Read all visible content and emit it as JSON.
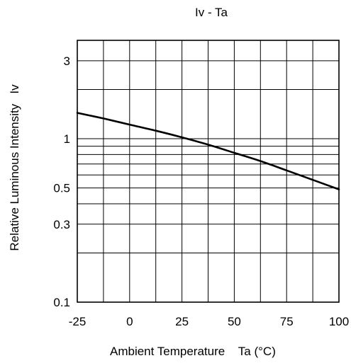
{
  "chart_data": {
    "type": "line",
    "title": "Iv - Ta",
    "xlabel": "Ambient Temperature    Ta (°C)",
    "ylabel": "Relative Luminous Intensity   Iv",
    "x_scale": "linear",
    "y_scale": "log",
    "xlim": [
      -25,
      100
    ],
    "ylim": [
      0.1,
      4
    ],
    "x_ticks": [
      -25,
      0,
      25,
      50,
      75,
      100
    ],
    "x_tick_labels": [
      "-25",
      "0",
      "25",
      "50",
      "75",
      "100"
    ],
    "x_minor_grid": [
      -12.5,
      12.5,
      37.5,
      62.5,
      87.5
    ],
    "y_ticks": [
      0.1,
      0.3,
      0.5,
      1,
      3
    ],
    "y_tick_labels": [
      "0.1",
      "0.3",
      "0.5",
      "1",
      "3"
    ],
    "y_grid": [
      0.2,
      0.3,
      0.4,
      0.5,
      0.6,
      0.7,
      0.8,
      0.9,
      1,
      2,
      3,
      4
    ],
    "grid": true,
    "line_color": "#000000",
    "series": [
      {
        "x": [
          -25,
          -12.5,
          0,
          12.5,
          25,
          37.5,
          50,
          62.5,
          75,
          87.5,
          100
        ],
        "values": [
          1.44,
          1.33,
          1.22,
          1.12,
          1.02,
          0.92,
          0.82,
          0.73,
          0.64,
          0.56,
          0.49
        ]
      }
    ]
  }
}
